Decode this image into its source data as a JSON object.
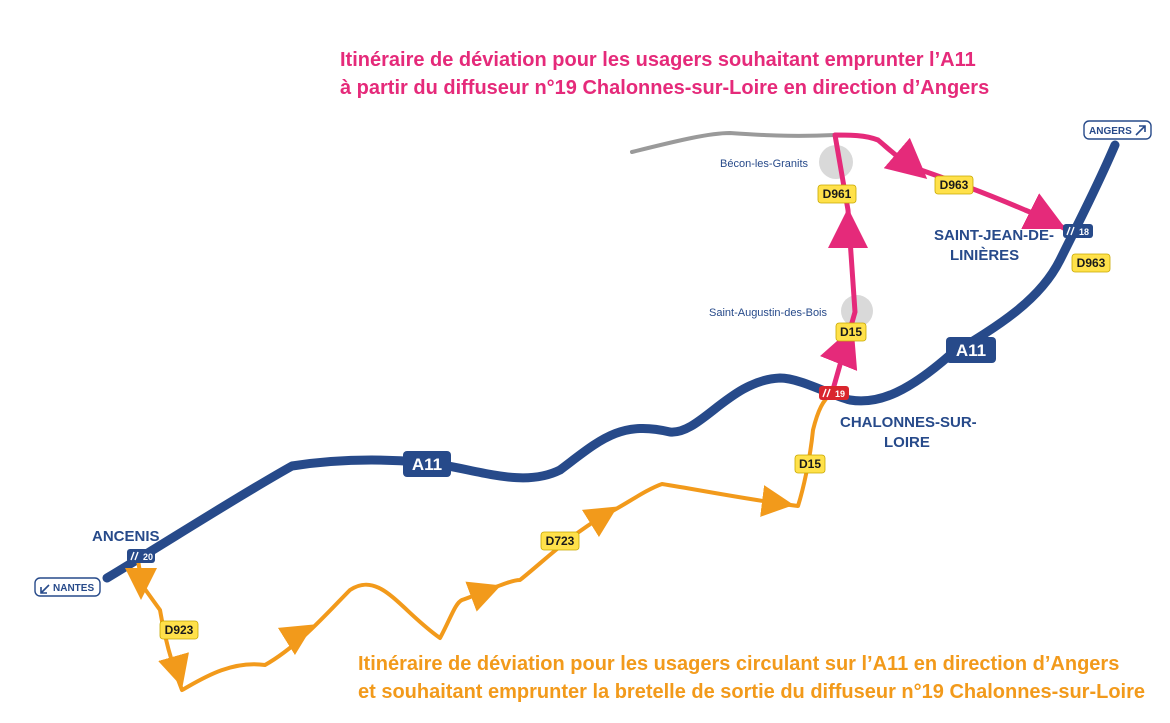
{
  "titles": {
    "pink_line1": "Itinéraire de déviation pour les usagers souhaitant emprunter l’A11",
    "pink_line2": "à partir du diffuseur n°19 Chalonnes-sur-Loire en direction d’Angers",
    "orange_line1": "Itinéraire de déviation pour les usagers circulant sur l’A11 en direction d’Angers",
    "orange_line2": "et souhaitant emprunter la bretelle de sortie du diffuseur n°19 Chalonnes-sur-Loire"
  },
  "motorway": {
    "name_label_1": "A11",
    "name_label_2": "A11"
  },
  "exits": {
    "exit_20": "20",
    "exit_19": "19",
    "exit_18": "18"
  },
  "roads": {
    "d923": "D923",
    "d723": "D723",
    "d15_orange": "D15",
    "d15_pink": "D15",
    "d961": "D961",
    "d963_pink": "D963",
    "d963_exit": "D963"
  },
  "places": {
    "ancenis": "ANCENIS",
    "chalonnes_line1": "CHALONNES-SUR-",
    "chalonnes_line2": "LOIRE",
    "saint_jean_line1": "SAINT-JEAN-DE-",
    "saint_jean_line2": "LINIÈRES",
    "becon": "Bécon-les-Granits",
    "saint_augustin": "Saint-Augustin-des-Bois"
  },
  "directions": {
    "nantes": "NANTES",
    "angers": "ANGERS"
  },
  "colors": {
    "motorway": "#274a8a",
    "pink_route": "#e52a7a",
    "orange_route": "#f29a1b",
    "grey_road": "#9a9a9a",
    "road_label": "#ffe14a",
    "exit_19": "#d9262e"
  },
  "icons": {
    "exit": "exit-icon",
    "direction_arrow": "direction-arrow-icon"
  }
}
